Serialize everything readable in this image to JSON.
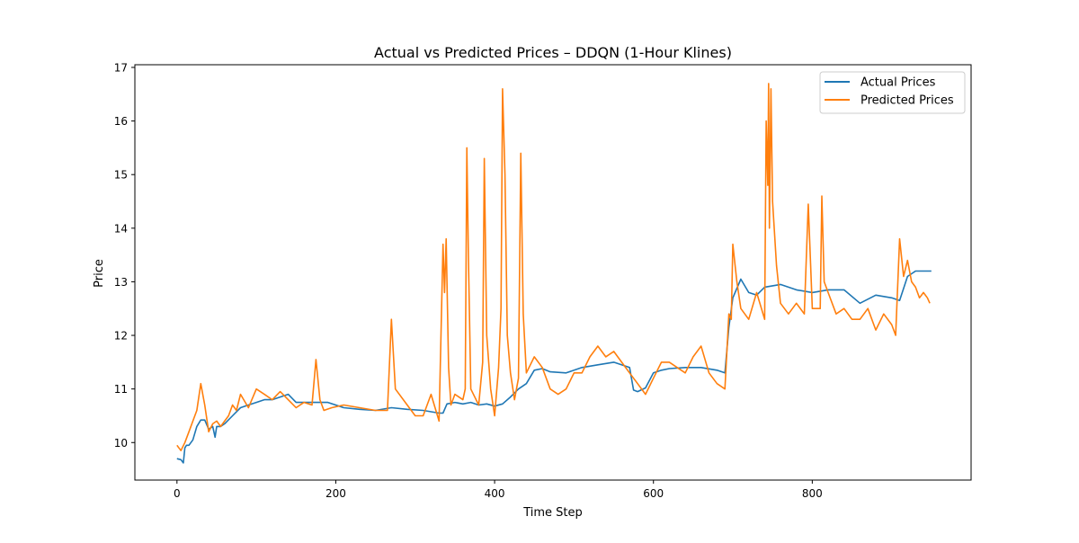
{
  "chart_data": {
    "type": "line",
    "title": "Actual vs Predicted Prices – DDQN (1-Hour Klines)",
    "xlabel": "Time Step",
    "ylabel": "Price",
    "xlim": [
      -53,
      1000
    ],
    "ylim": [
      9.3,
      17.05
    ],
    "xticks": [
      0,
      200,
      400,
      600,
      800
    ],
    "yticks": [
      10,
      11,
      12,
      13,
      14,
      15,
      16,
      17
    ],
    "grid": false,
    "legend_position": "top-right",
    "series": [
      {
        "name": "Actual Prices",
        "color": "#1f77b4",
        "x": [
          0,
          5,
          8,
          10,
          12,
          15,
          20,
          25,
          30,
          35,
          40,
          45,
          48,
          50,
          55,
          60,
          70,
          80,
          90,
          100,
          110,
          120,
          130,
          140,
          150,
          170,
          190,
          210,
          230,
          250,
          270,
          290,
          310,
          330,
          335,
          340,
          350,
          360,
          370,
          380,
          390,
          400,
          410,
          420,
          430,
          440,
          450,
          460,
          470,
          490,
          510,
          530,
          550,
          570,
          575,
          580,
          590,
          600,
          610,
          620,
          640,
          660,
          680,
          690,
          695,
          700,
          710,
          720,
          730,
          740,
          760,
          780,
          800,
          820,
          840,
          860,
          880,
          900,
          910,
          920,
          930,
          940,
          950
        ],
        "values": [
          9.7,
          9.68,
          9.62,
          9.9,
          9.95,
          9.95,
          10.05,
          10.3,
          10.42,
          10.42,
          10.25,
          10.3,
          10.1,
          10.3,
          10.3,
          10.35,
          10.5,
          10.65,
          10.7,
          10.75,
          10.8,
          10.8,
          10.85,
          10.9,
          10.75,
          10.75,
          10.75,
          10.65,
          10.62,
          10.6,
          10.65,
          10.62,
          10.6,
          10.55,
          10.55,
          10.72,
          10.75,
          10.72,
          10.75,
          10.7,
          10.72,
          10.68,
          10.72,
          10.85,
          11.0,
          11.1,
          11.35,
          11.38,
          11.32,
          11.3,
          11.4,
          11.45,
          11.5,
          11.4,
          10.98,
          10.95,
          11.02,
          11.3,
          11.35,
          11.38,
          11.4,
          11.4,
          11.35,
          11.3,
          12.15,
          12.7,
          13.05,
          12.8,
          12.75,
          12.9,
          12.95,
          12.85,
          12.8,
          12.85,
          12.85,
          12.6,
          12.75,
          12.7,
          12.65,
          13.1,
          13.2,
          13.2,
          13.2
        ]
      },
      {
        "name": "Predicted Prices",
        "color": "#ff7f0e",
        "x": [
          0,
          5,
          10,
          15,
          20,
          25,
          30,
          35,
          40,
          45,
          50,
          55,
          60,
          65,
          70,
          75,
          80,
          90,
          100,
          110,
          120,
          130,
          140,
          150,
          160,
          170,
          175,
          180,
          185,
          195,
          210,
          230,
          250,
          265,
          270,
          275,
          290,
          300,
          310,
          320,
          330,
          335,
          337,
          339,
          342,
          345,
          350,
          360,
          363,
          365,
          367,
          370,
          380,
          385,
          387,
          390,
          395,
          400,
          405,
          408,
          410,
          413,
          416,
          420,
          425,
          430,
          433,
          436,
          440,
          450,
          460,
          470,
          480,
          490,
          500,
          510,
          520,
          530,
          540,
          550,
          560,
          570,
          580,
          590,
          600,
          610,
          620,
          640,
          650,
          660,
          670,
          680,
          690,
          695,
          698,
          700,
          705,
          710,
          720,
          730,
          740,
          742,
          744,
          745,
          746,
          748,
          750,
          755,
          760,
          770,
          780,
          790,
          795,
          800,
          810,
          812,
          815,
          820,
          830,
          840,
          850,
          860,
          870,
          880,
          890,
          900,
          905,
          910,
          915,
          920,
          925,
          930,
          935,
          940,
          945,
          948
        ],
        "values": [
          9.95,
          9.85,
          10.0,
          10.2,
          10.4,
          10.6,
          11.1,
          10.7,
          10.2,
          10.35,
          10.4,
          10.3,
          10.4,
          10.5,
          10.7,
          10.6,
          10.9,
          10.65,
          11.0,
          10.9,
          10.8,
          10.95,
          10.8,
          10.65,
          10.75,
          10.7,
          11.55,
          10.8,
          10.6,
          10.65,
          10.7,
          10.65,
          10.6,
          10.6,
          12.3,
          11.0,
          10.7,
          10.5,
          10.5,
          10.9,
          10.4,
          13.7,
          12.8,
          13.8,
          11.4,
          10.7,
          10.9,
          10.8,
          11.0,
          15.5,
          13.5,
          11.0,
          10.7,
          11.5,
          15.3,
          12.0,
          11.0,
          10.5,
          11.4,
          12.5,
          16.6,
          15.0,
          12.0,
          11.3,
          10.8,
          11.2,
          15.4,
          12.4,
          11.3,
          11.6,
          11.4,
          11.0,
          10.9,
          11.0,
          11.3,
          11.3,
          11.6,
          11.8,
          11.6,
          11.7,
          11.5,
          11.3,
          11.1,
          10.9,
          11.2,
          11.5,
          11.5,
          11.3,
          11.6,
          11.8,
          11.3,
          11.1,
          11.0,
          12.4,
          12.3,
          13.7,
          13.0,
          12.5,
          12.3,
          12.8,
          12.3,
          16.0,
          14.8,
          16.7,
          14.0,
          16.6,
          14.5,
          13.3,
          12.6,
          12.4,
          12.6,
          12.4,
          14.45,
          12.5,
          12.5,
          14.6,
          13.0,
          12.8,
          12.4,
          12.5,
          12.3,
          12.3,
          12.5,
          12.1,
          12.4,
          12.2,
          12.0,
          13.8,
          13.1,
          13.4,
          13.0,
          12.9,
          12.7,
          12.8,
          12.7,
          12.6
        ]
      }
    ]
  }
}
